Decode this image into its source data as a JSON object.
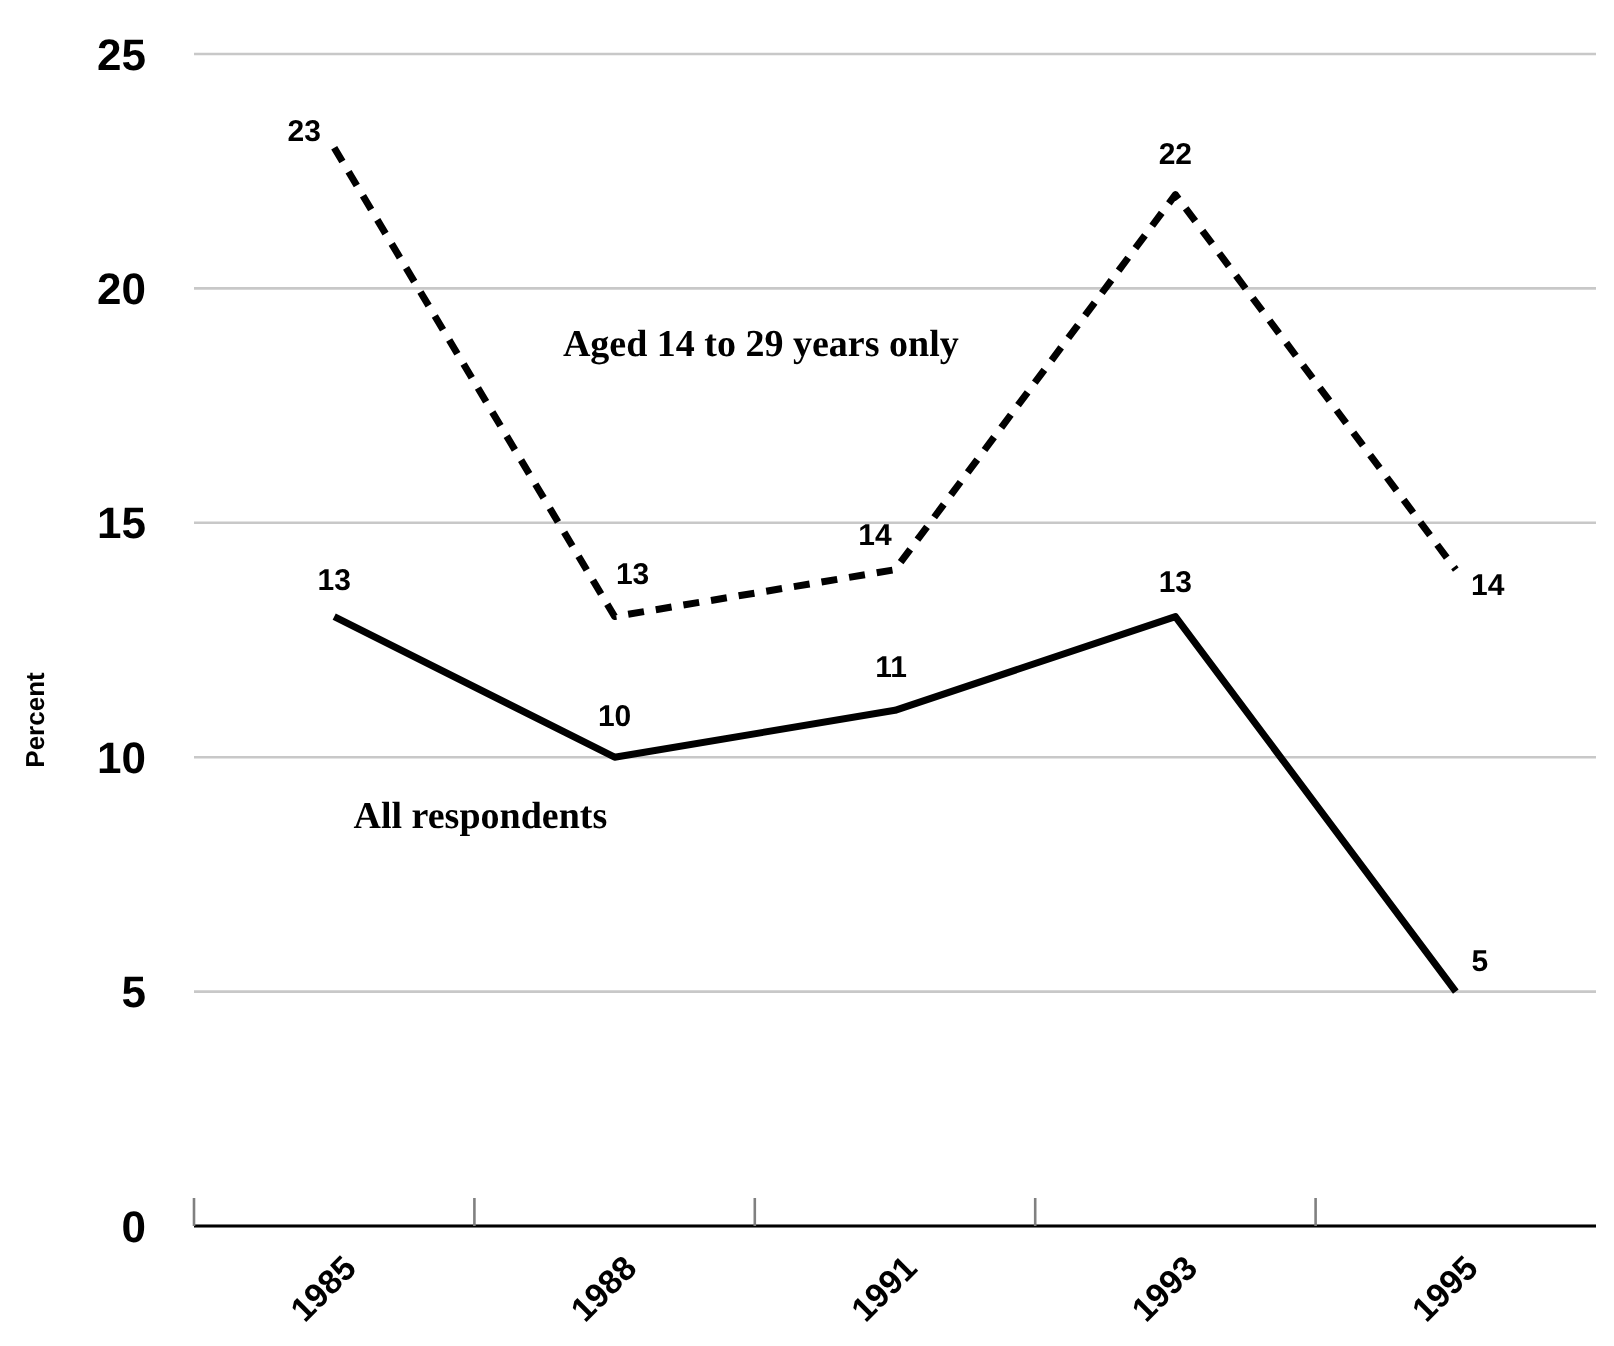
{
  "chart_data": {
    "type": "line",
    "categories": [
      "1985",
      "1988",
      "1991",
      "1993",
      "1995"
    ],
    "ylabel": "Percent",
    "ylim": [
      0,
      25
    ],
    "yticks": [
      0,
      5,
      10,
      15,
      20,
      25
    ],
    "grid": "y",
    "data_labels": true,
    "marker": "none",
    "legend": false,
    "series": [
      {
        "name": "All respondents",
        "color": "#000000",
        "line_style": "solid",
        "values": [
          13,
          10,
          11,
          13,
          5
        ]
      },
      {
        "name": "Aged 14 to 29 years only",
        "color": "#000000",
        "line_style": "dashed",
        "values": [
          23,
          13,
          14,
          22,
          14
        ]
      }
    ]
  }
}
